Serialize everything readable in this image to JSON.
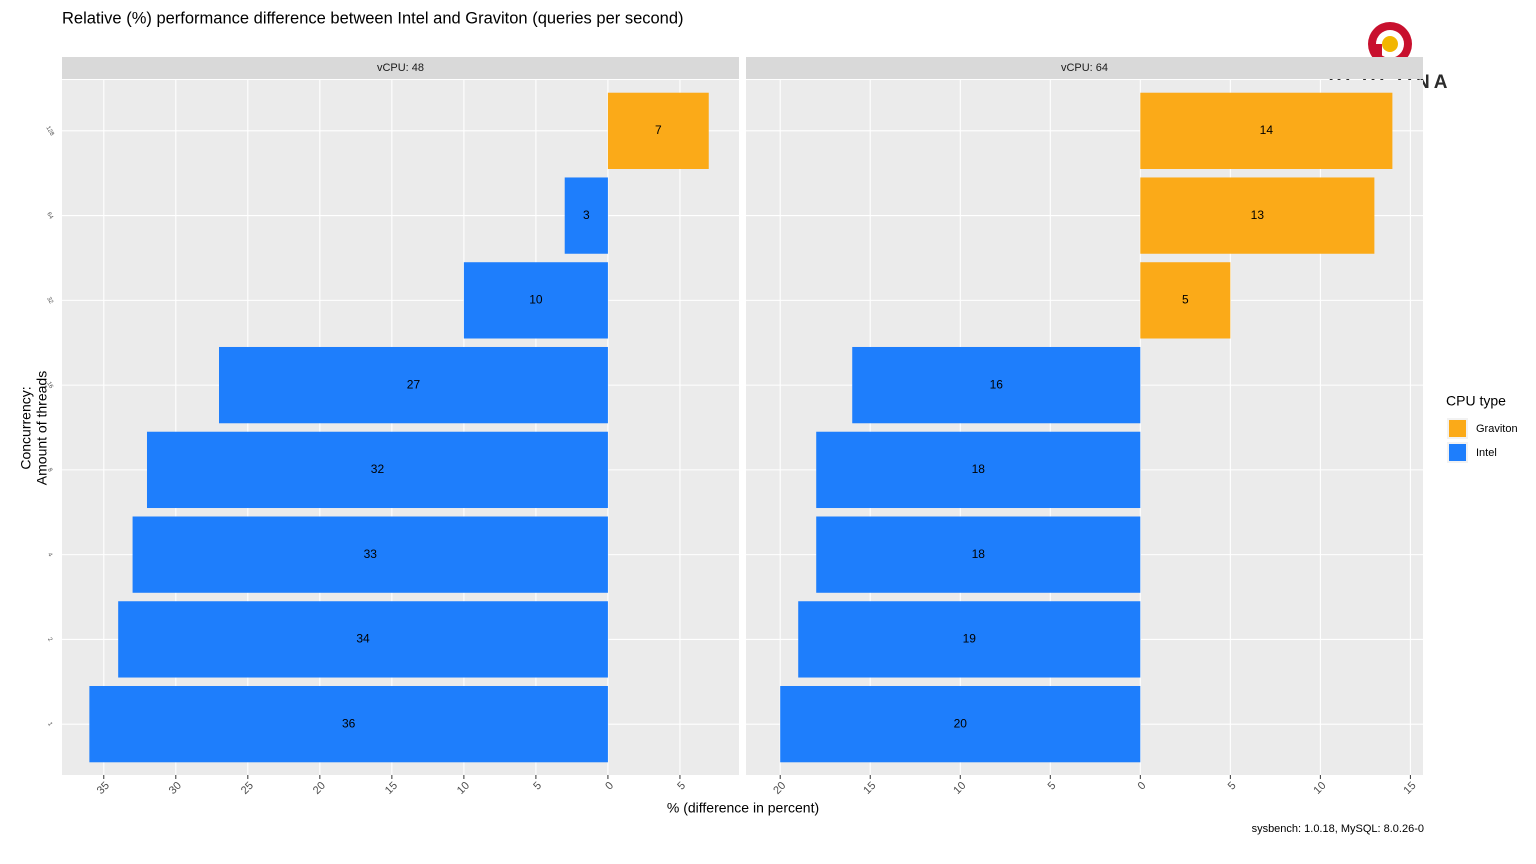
{
  "title": "Relative (%) performance difference between Intel and Graviton (queries per second)",
  "xlabel": "% (difference in percent)",
  "ylabel": [
    "Concurrency:",
    "Amount of threads"
  ],
  "legend_title": "CPU type",
  "caption": "sysbench: 1.0.18, MySQL: 8.0.26-0",
  "logo_text": "PERCONA",
  "chart_data": [
    {
      "type": "bar",
      "orientation": "horizontal",
      "strip_title": "vCPU: 48",
      "categories": [
        "1",
        "2",
        "4",
        "8",
        "16",
        "32",
        "64",
        "128"
      ],
      "series": [
        {
          "name": "Graviton",
          "color": "#FBAA18",
          "values": [
            null,
            null,
            null,
            null,
            null,
            null,
            null,
            7
          ],
          "value_labels": [
            null,
            null,
            null,
            null,
            null,
            null,
            null,
            "7"
          ]
        },
        {
          "name": "Intel",
          "color": "#1E7EFC",
          "values": [
            -36,
            -34,
            -33,
            -32,
            -27,
            -10,
            -3,
            null
          ],
          "value_labels": [
            "36",
            "34",
            "33",
            "32",
            "27",
            "10",
            "3",
            null
          ]
        }
      ],
      "xlim": [
        -37.9,
        9.1
      ],
      "xticks": [
        {
          "value": -35,
          "label": "35"
        },
        {
          "value": -30,
          "label": "30"
        },
        {
          "value": -25,
          "label": "25"
        },
        {
          "value": -20,
          "label": "20"
        },
        {
          "value": -15,
          "label": "15"
        },
        {
          "value": -10,
          "label": "10"
        },
        {
          "value": -5,
          "label": "5"
        },
        0,
        5
      ],
      "grid": true
    },
    {
      "type": "bar",
      "orientation": "horizontal",
      "strip_title": "vCPU: 64",
      "categories": [
        "1",
        "2",
        "4",
        "8",
        "16",
        "32",
        "64",
        "128"
      ],
      "series": [
        {
          "name": "Graviton",
          "color": "#FBAA18",
          "values": [
            null,
            null,
            null,
            null,
            null,
            5,
            13,
            14
          ],
          "value_labels": [
            null,
            null,
            null,
            null,
            null,
            "5",
            "13",
            "14"
          ]
        },
        {
          "name": "Intel",
          "color": "#1E7EFC",
          "values": [
            -20,
            -19,
            -18,
            -18,
            -16,
            null,
            null,
            null
          ],
          "value_labels": [
            "20",
            "19",
            "18",
            "18",
            "16",
            null,
            null,
            null
          ]
        }
      ],
      "xlim": [
        -21.9,
        15.7
      ],
      "xticks": [
        {
          "value": -20,
          "label": "20"
        },
        {
          "value": -15,
          "label": "15"
        },
        {
          "value": -10,
          "label": "10"
        },
        {
          "value": -5,
          "label": "5"
        },
        0,
        5,
        10,
        15
      ],
      "grid": true
    }
  ]
}
